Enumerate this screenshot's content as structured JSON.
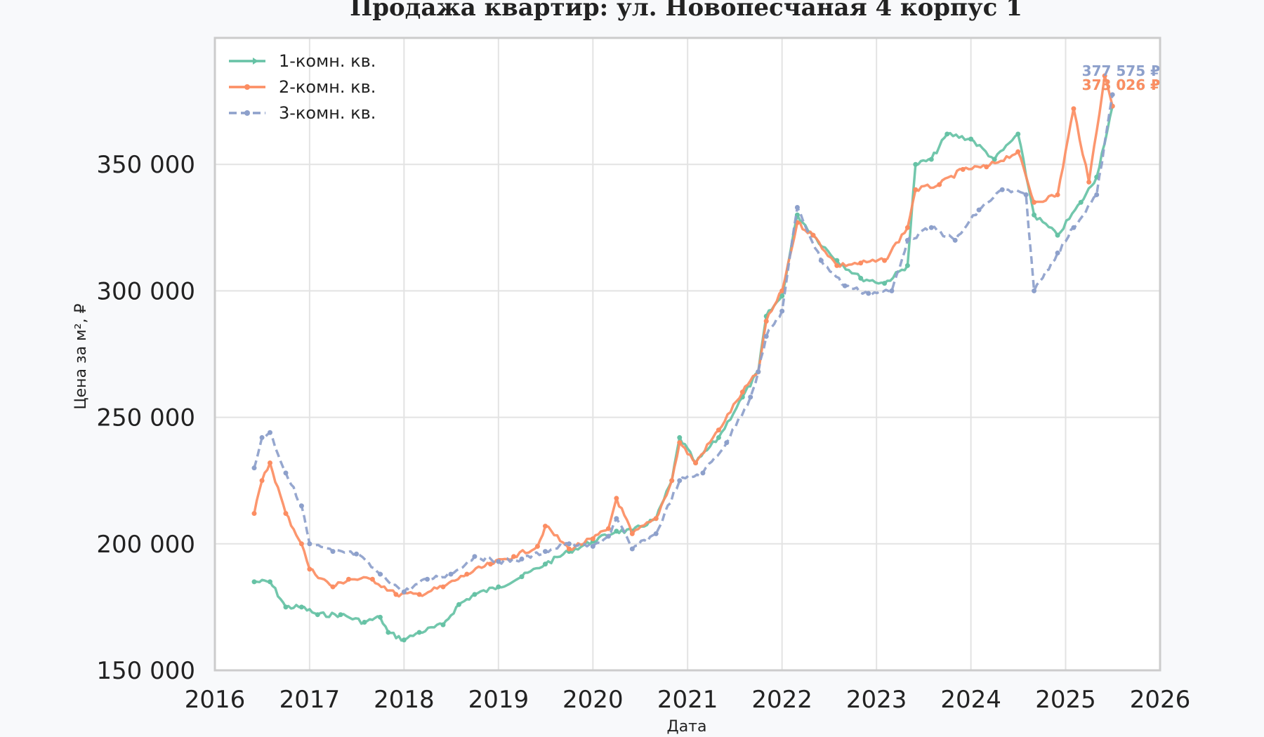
{
  "chart_data": {
    "type": "line",
    "title": "Продажа квартир: ул. Новопесчаная 4 корпус 1",
    "xlabel": "Дата",
    "ylabel": "Цена за м², ₽",
    "xlim": [
      "2016-01-01",
      "2026-01-01"
    ],
    "ylim": [
      150000,
      400000
    ],
    "grid": true,
    "legend_position": "top-left",
    "x_ticks": [
      "2016",
      "2017",
      "2018",
      "2019",
      "2020",
      "2021",
      "2022",
      "2023",
      "2024",
      "2025",
      "2026"
    ],
    "y_ticks": [
      {
        "value": 150000,
        "label": "150 000"
      },
      {
        "value": 200000,
        "label": "200 000"
      },
      {
        "value": 250000,
        "label": "250 000"
      },
      {
        "value": 300000,
        "label": "300 000"
      },
      {
        "value": 350000,
        "label": "350 000"
      }
    ],
    "series": [
      {
        "name": "1-комн. кв.",
        "color": "#66c2a5",
        "dash": "solid",
        "marker": "triangle",
        "end_label": "373 026 ₽",
        "points": [
          [
            "2016-06-01",
            185000
          ],
          [
            "2016-08-01",
            185000
          ],
          [
            "2016-10-01",
            175000
          ],
          [
            "2016-12-01",
            175000
          ],
          [
            "2017-02-01",
            172000
          ],
          [
            "2017-05-01",
            172000
          ],
          [
            "2017-08-01",
            169000
          ],
          [
            "2017-10-01",
            171000
          ],
          [
            "2017-11-01",
            165000
          ],
          [
            "2018-01-01",
            162000
          ],
          [
            "2018-03-01",
            165000
          ],
          [
            "2018-06-01",
            168000
          ],
          [
            "2018-08-01",
            176000
          ],
          [
            "2018-10-01",
            180000
          ],
          [
            "2019-01-01",
            183000
          ],
          [
            "2019-04-01",
            187000
          ],
          [
            "2019-07-01",
            192000
          ],
          [
            "2019-10-01",
            197000
          ],
          [
            "2020-01-01",
            201000
          ],
          [
            "2020-04-01",
            205000
          ],
          [
            "2020-06-01",
            205000
          ],
          [
            "2020-09-01",
            210000
          ],
          [
            "2020-11-01",
            225000
          ],
          [
            "2020-12-01",
            242000
          ],
          [
            "2021-02-01",
            232000
          ],
          [
            "2021-05-01",
            242000
          ],
          [
            "2021-08-01",
            258000
          ],
          [
            "2021-10-01",
            268000
          ],
          [
            "2021-11-01",
            290000
          ],
          [
            "2022-01-01",
            298000
          ],
          [
            "2022-03-01",
            330000
          ],
          [
            "2022-05-01",
            322000
          ],
          [
            "2022-08-01",
            312000
          ],
          [
            "2022-11-01",
            305000
          ],
          [
            "2023-02-01",
            303000
          ],
          [
            "2023-05-01",
            310000
          ],
          [
            "2023-06-01",
            350000
          ],
          [
            "2023-08-01",
            352000
          ],
          [
            "2023-10-01",
            362000
          ],
          [
            "2024-01-01",
            360000
          ],
          [
            "2024-04-01",
            352000
          ],
          [
            "2024-07-01",
            362000
          ],
          [
            "2024-09-01",
            330000
          ],
          [
            "2024-12-01",
            322000
          ],
          [
            "2025-03-01",
            335000
          ],
          [
            "2025-05-01",
            345000
          ],
          [
            "2025-07-01",
            373026
          ]
        ]
      },
      {
        "name": "2-комн. кв.",
        "color": "#fc8d62",
        "dash": "solid",
        "marker": "circle",
        "end_label": "373 026 ₽",
        "points": [
          [
            "2016-06-01",
            212000
          ],
          [
            "2016-07-01",
            225000
          ],
          [
            "2016-08-01",
            232000
          ],
          [
            "2016-10-01",
            212000
          ],
          [
            "2016-12-01",
            200000
          ],
          [
            "2017-01-01",
            190000
          ],
          [
            "2017-04-01",
            183000
          ],
          [
            "2017-06-01",
            186000
          ],
          [
            "2017-09-01",
            186000
          ],
          [
            "2017-12-01",
            180000
          ],
          [
            "2018-03-01",
            180000
          ],
          [
            "2018-06-01",
            183000
          ],
          [
            "2018-09-01",
            188000
          ],
          [
            "2018-12-01",
            192000
          ],
          [
            "2019-03-01",
            195000
          ],
          [
            "2019-06-01",
            199000
          ],
          [
            "2019-07-01",
            207000
          ],
          [
            "2019-10-01",
            198000
          ],
          [
            "2020-01-01",
            202000
          ],
          [
            "2020-03-01",
            206000
          ],
          [
            "2020-04-01",
            218000
          ],
          [
            "2020-06-01",
            204000
          ],
          [
            "2020-09-01",
            210000
          ],
          [
            "2020-11-01",
            225000
          ],
          [
            "2020-12-01",
            240000
          ],
          [
            "2021-02-01",
            232000
          ],
          [
            "2021-05-01",
            245000
          ],
          [
            "2021-08-01",
            260000
          ],
          [
            "2021-10-01",
            268000
          ],
          [
            "2021-11-01",
            288000
          ],
          [
            "2022-01-01",
            300000
          ],
          [
            "2022-03-01",
            327000
          ],
          [
            "2022-05-01",
            322000
          ],
          [
            "2022-08-01",
            310000
          ],
          [
            "2022-11-01",
            311000
          ],
          [
            "2023-02-01",
            312000
          ],
          [
            "2023-05-01",
            325000
          ],
          [
            "2023-06-01",
            340000
          ],
          [
            "2023-09-01",
            342000
          ],
          [
            "2023-12-01",
            348000
          ],
          [
            "2024-03-01",
            349000
          ],
          [
            "2024-07-01",
            355000
          ],
          [
            "2024-09-01",
            335000
          ],
          [
            "2024-12-01",
            338000
          ],
          [
            "2025-02-01",
            372000
          ],
          [
            "2025-04-01",
            343000
          ],
          [
            "2025-06-01",
            385000
          ],
          [
            "2025-07-01",
            373026
          ]
        ]
      },
      {
        "name": "3-комн. кв.",
        "color": "#8da0cb",
        "dash": "dashed",
        "marker": "circle",
        "end_label": "377 575 ₽",
        "points": [
          [
            "2016-06-01",
            230000
          ],
          [
            "2016-07-01",
            242000
          ],
          [
            "2016-08-01",
            244000
          ],
          [
            "2016-10-01",
            228000
          ],
          [
            "2016-12-01",
            215000
          ],
          [
            "2017-01-01",
            200000
          ],
          [
            "2017-04-01",
            197000
          ],
          [
            "2017-07-01",
            196000
          ],
          [
            "2017-10-01",
            188000
          ],
          [
            "2018-01-01",
            181000
          ],
          [
            "2018-04-01",
            186000
          ],
          [
            "2018-07-01",
            188000
          ],
          [
            "2018-10-01",
            195000
          ],
          [
            "2019-01-01",
            193000
          ],
          [
            "2019-04-01",
            194000
          ],
          [
            "2019-07-01",
            197000
          ],
          [
            "2019-10-01",
            200000
          ],
          [
            "2020-01-01",
            199000
          ],
          [
            "2020-03-01",
            203000
          ],
          [
            "2020-04-01",
            210000
          ],
          [
            "2020-06-01",
            198000
          ],
          [
            "2020-09-01",
            204000
          ],
          [
            "2020-12-01",
            225000
          ],
          [
            "2021-03-01",
            228000
          ],
          [
            "2021-06-01",
            240000
          ],
          [
            "2021-09-01",
            258000
          ],
          [
            "2021-10-01",
            268000
          ],
          [
            "2021-11-01",
            282000
          ],
          [
            "2022-01-01",
            292000
          ],
          [
            "2022-03-01",
            333000
          ],
          [
            "2022-06-01",
            312000
          ],
          [
            "2022-09-01",
            302000
          ],
          [
            "2022-12-01",
            299000
          ],
          [
            "2023-03-01",
            300000
          ],
          [
            "2023-05-01",
            320000
          ],
          [
            "2023-08-01",
            325000
          ],
          [
            "2023-11-01",
            320000
          ],
          [
            "2024-02-01",
            332000
          ],
          [
            "2024-05-01",
            340000
          ],
          [
            "2024-08-01",
            338000
          ],
          [
            "2024-09-01",
            300000
          ],
          [
            "2024-12-01",
            315000
          ],
          [
            "2025-02-01",
            325000
          ],
          [
            "2025-05-01",
            338000
          ],
          [
            "2025-07-01",
            377575
          ]
        ]
      }
    ]
  }
}
